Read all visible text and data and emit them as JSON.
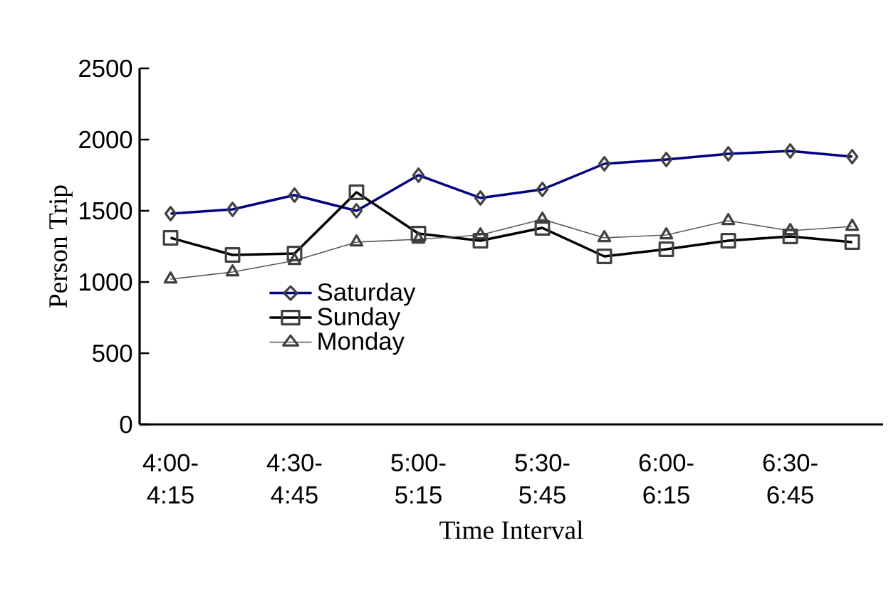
{
  "chart_data": {
    "type": "line",
    "xlabel": "Time Interval",
    "ylabel": "Person Trip",
    "categories": [
      "4:00- 4:15",
      null,
      "4:30- 4:45",
      null,
      "5:00- 5:15",
      null,
      "5:30- 5:45",
      null,
      "6:00- 6:15",
      null,
      "6:30- 6:45",
      null
    ],
    "series": [
      {
        "name": "Saturday",
        "color": "#000080",
        "marker": "diamond",
        "values": [
          1480,
          1510,
          1610,
          1500,
          1750,
          1590,
          1650,
          1830,
          1860,
          1900,
          1920,
          1880
        ]
      },
      {
        "name": "Sunday",
        "color": "#000000",
        "marker": "square",
        "values": [
          1310,
          1190,
          1200,
          1630,
          1340,
          1290,
          1380,
          1180,
          1230,
          1290,
          1320,
          1280
        ]
      },
      {
        "name": "Monday",
        "color": "#595959",
        "marker": "triangle",
        "values": [
          1020,
          1070,
          1150,
          1280,
          1300,
          1330,
          1440,
          1310,
          1330,
          1430,
          1360,
          1390
        ]
      }
    ],
    "ylim": [
      0,
      2500
    ],
    "yticks": [
      0,
      500,
      1000,
      1500,
      2000,
      2500
    ],
    "grid": false,
    "legend": "left",
    "line_style": "solid"
  }
}
